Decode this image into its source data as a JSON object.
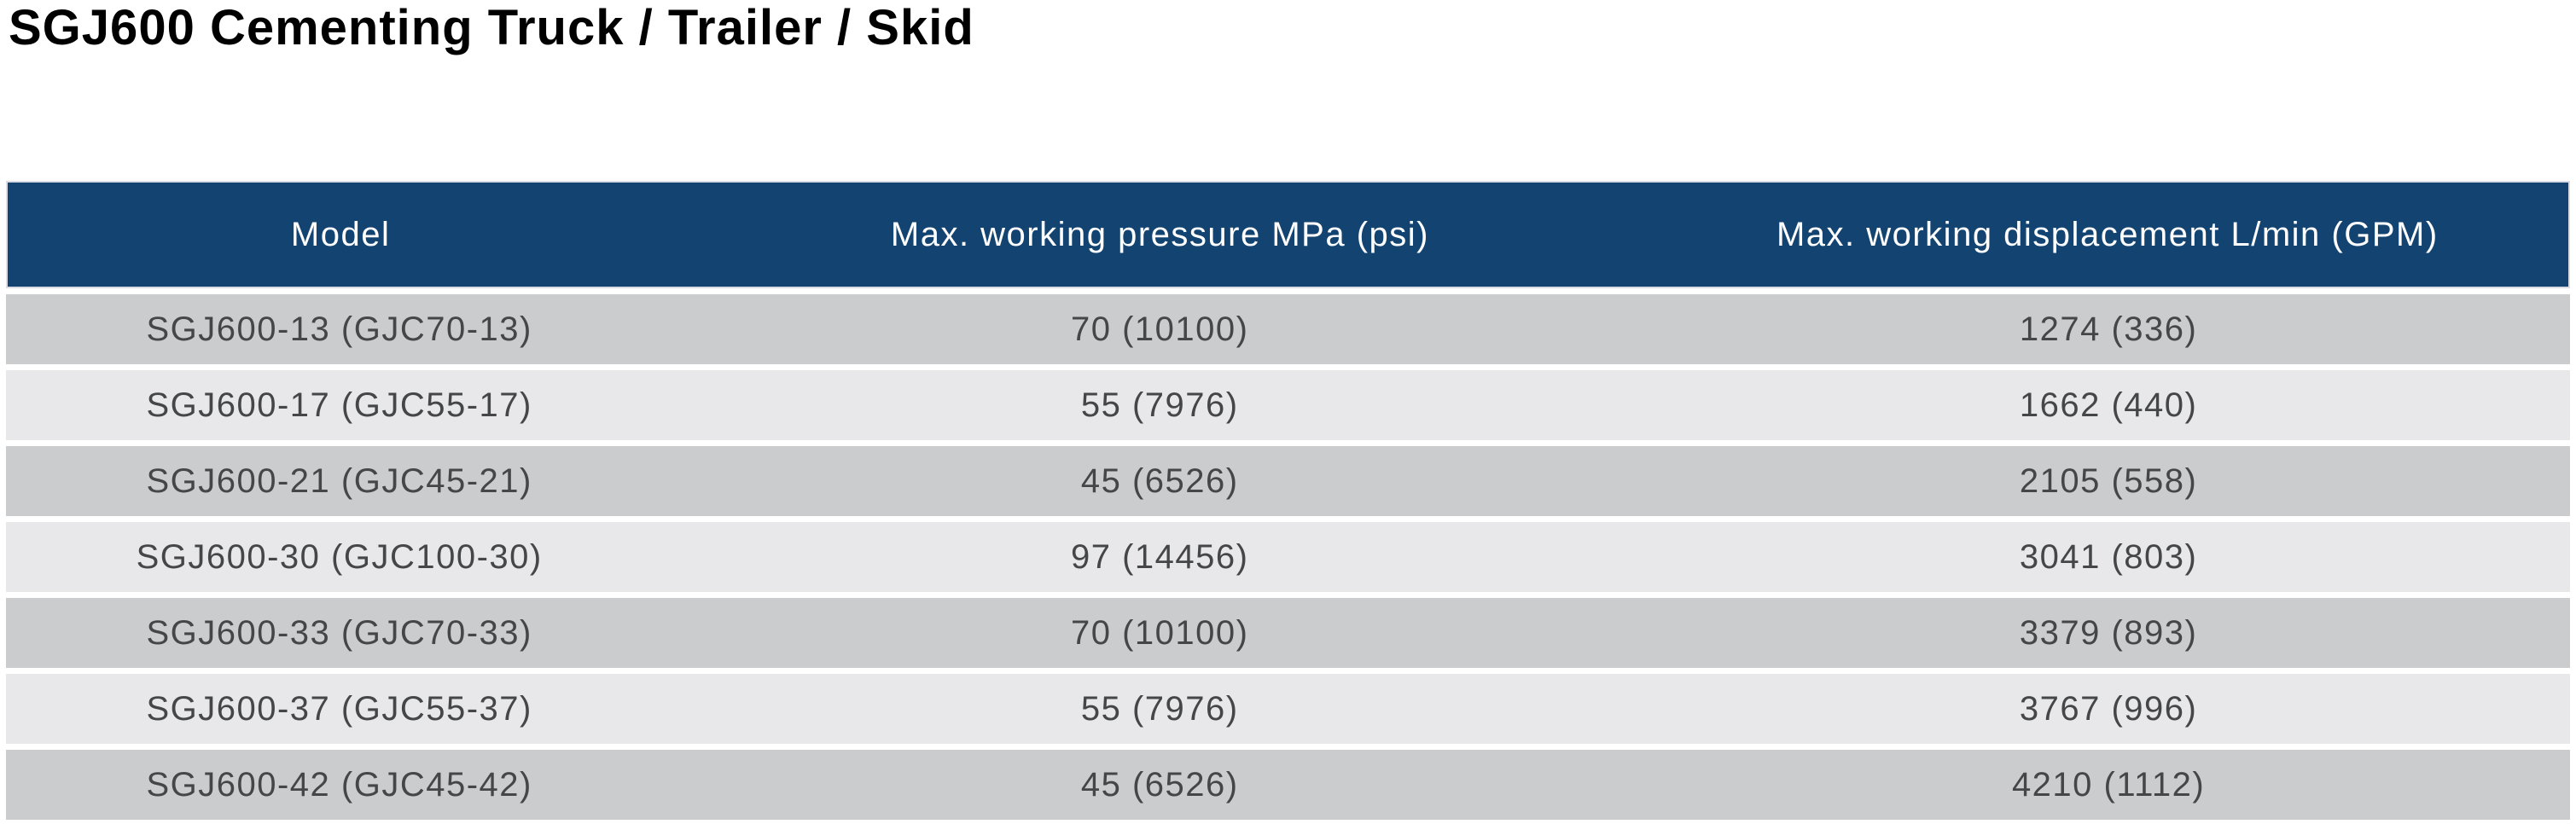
{
  "page": {
    "title": "SGJ600 Cementing Truck / Trailer / Skid"
  },
  "colors": {
    "header_bg": "#134471",
    "header_text": "#ffffff",
    "header_border": "#d9dce5",
    "row_dark": "#cbcccd",
    "row_light": "#e8e8ea",
    "row_text": "#454648",
    "title_text": "#000000",
    "page_bg": "#ffffff"
  },
  "table": {
    "columns": [
      "Model",
      "Max. working pressure MPa (psi)",
      "Max. working displacement L/min (GPM)"
    ],
    "rows": [
      {
        "model": "SGJ600-13 (GJC70-13)",
        "pressure": "70 (10100)",
        "displacement": "1274 (336)"
      },
      {
        "model": "SGJ600-17 (GJC55-17)",
        "pressure": "55 (7976)",
        "displacement": "1662 (440)"
      },
      {
        "model": "SGJ600-21 (GJC45-21)",
        "pressure": "45 (6526)",
        "displacement": "2105 (558)"
      },
      {
        "model": "SGJ600-30 (GJC100-30)",
        "pressure": "97 (14456)",
        "displacement": "3041 (803)"
      },
      {
        "model": "SGJ600-33 (GJC70-33)",
        "pressure": "70 (10100)",
        "displacement": "3379 (893)"
      },
      {
        "model": "SGJ600-37 (GJC55-37)",
        "pressure": "55 (7976)",
        "displacement": "3767 (996)"
      },
      {
        "model": "SGJ600-42 (GJC45-42)",
        "pressure": "45 (6526)",
        "displacement": "4210 (1112)"
      }
    ]
  }
}
